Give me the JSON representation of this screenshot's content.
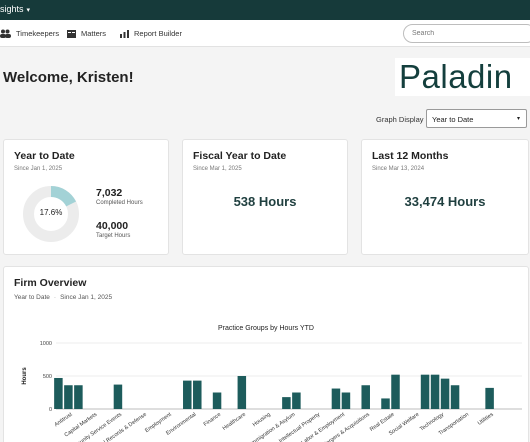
{
  "topbar": {
    "app_name": "sights",
    "menu_caret": "▾"
  },
  "nav": {
    "items": [
      {
        "label": "Timekeepers",
        "icon": "people-icon"
      },
      {
        "label": "Matters",
        "icon": "folder-icon"
      },
      {
        "label": "Report Builder",
        "icon": "bar-chart-icon"
      }
    ],
    "search_placeholder": "Search"
  },
  "welcome": "Welcome, Kristen!",
  "logo_text": "Paladin",
  "graph_display": {
    "label": "Graph Display",
    "selected": "Year to Date",
    "caret": "▾"
  },
  "cards": {
    "ytd": {
      "title": "Year to Date",
      "since": "Since Jan 1, 2025",
      "percent_label": "17.6%",
      "percent_value": 17.6,
      "completed_value": "7,032",
      "completed_label": "Completed Hours",
      "target_value": "40,000",
      "target_label": "Target Hours"
    },
    "fiscal": {
      "title": "Fiscal Year to Date",
      "since": "Since Mar 1, 2025",
      "value": "538 Hours"
    },
    "last12": {
      "title": "Last 12 Months",
      "since": "Since Mar 13, 2024",
      "value": "33,474 Hours"
    }
  },
  "firm": {
    "title": "Firm Overview",
    "period": "Year to Date",
    "separator": "·",
    "since": "Since Jan 1, 2025"
  },
  "colors": {
    "accent": "#1d5c5c",
    "donut_fill": "#a3d2d6",
    "donut_track": "#ececec",
    "header": "#163a3a"
  },
  "chart_data": {
    "type": "bar",
    "title": "Practice Groups by Hours YTD",
    "ylabel": "Hours",
    "ylim": [
      0,
      1000
    ],
    "yticks": [
      0,
      500,
      1000
    ],
    "grid": true,
    "categories": [
      "Antitrust",
      "Capital Markets",
      "Community Service Events",
      "Criminal Records & Defense",
      "Employment",
      "Environmental",
      "Finance",
      "Healthcare",
      "Housing",
      "Immigration & Asylum",
      "Intellectual Property",
      "Labor & Employment",
      "Mergers & Acquisitions",
      "Real Estate",
      "Social Welfare",
      "Technology",
      "Transportation",
      "Utilities"
    ],
    "bars": [
      {
        "group": 0,
        "values": [
          470,
          360,
          360
        ]
      },
      {
        "group": 1,
        "values": []
      },
      {
        "group": 2,
        "values": [
          370
        ]
      },
      {
        "group": 3,
        "values": []
      },
      {
        "group": 4,
        "values": []
      },
      {
        "group": 5,
        "values": [
          430,
          430
        ]
      },
      {
        "group": 6,
        "values": [
          250
        ]
      },
      {
        "group": 7,
        "values": [
          500
        ]
      },
      {
        "group": 8,
        "values": []
      },
      {
        "group": 9,
        "values": [
          180,
          250
        ]
      },
      {
        "group": 10,
        "values": []
      },
      {
        "group": 11,
        "values": [
          310,
          250
        ]
      },
      {
        "group": 12,
        "values": [
          360
        ]
      },
      {
        "group": 13,
        "values": [
          160,
          520
        ]
      },
      {
        "group": 14,
        "values": []
      },
      {
        "group": 15,
        "values": [
          520,
          520,
          460,
          360
        ]
      },
      {
        "group": 16,
        "values": []
      },
      {
        "group": 17,
        "values": [
          320
        ]
      }
    ]
  }
}
